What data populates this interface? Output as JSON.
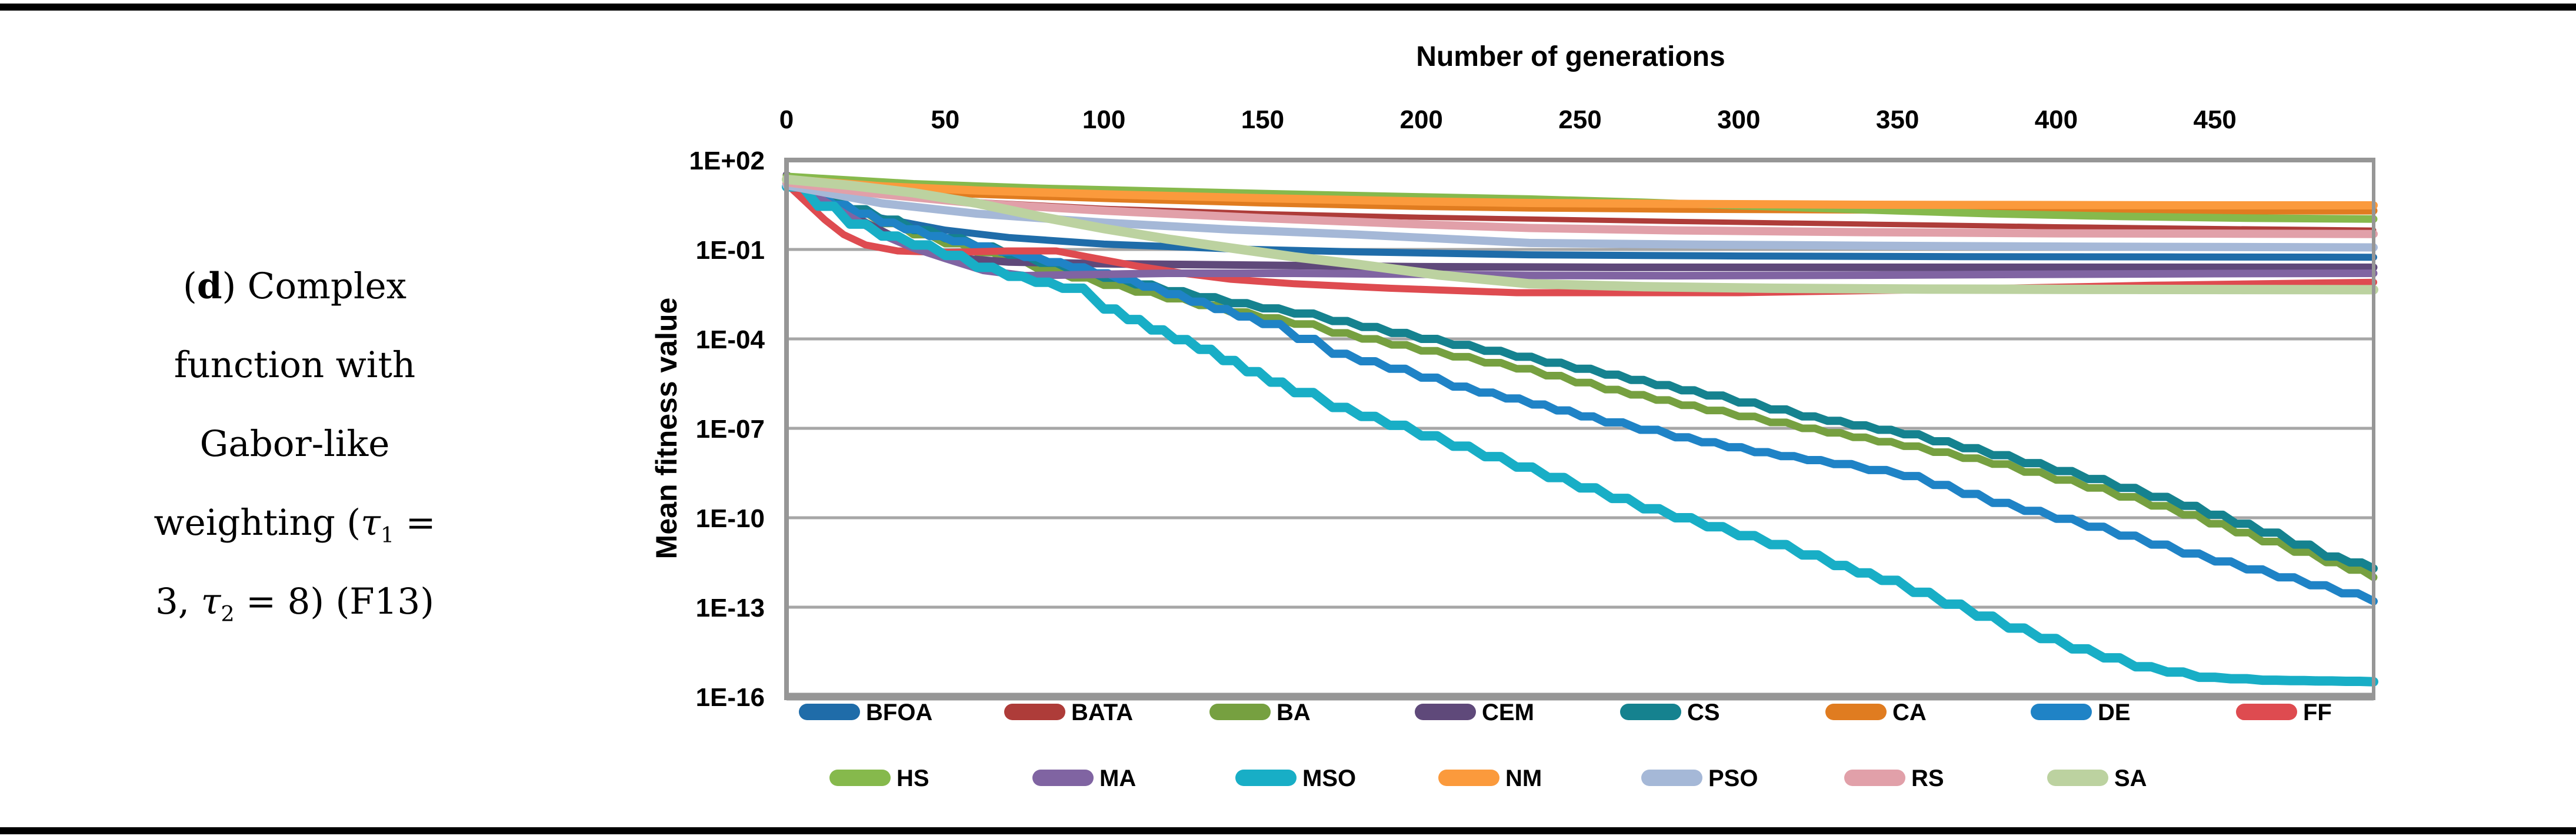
{
  "figure": {
    "caption_lines": [
      "(d) Complex",
      "function with",
      "Gabor-like",
      "weighting (τ₁ =",
      "3, τ₂ = 8) (F13)"
    ]
  },
  "chart_data": {
    "type": "line",
    "xlabel": "Number of generations",
    "ylabel": "Mean fitness value",
    "x_ticks": [
      0,
      50,
      100,
      150,
      200,
      250,
      300,
      350,
      400,
      450
    ],
    "xlim": [
      0,
      500
    ],
    "y_scale": "log10",
    "y_tick_labels": [
      "1E+02",
      "1E-01",
      "1E-04",
      "1E-07",
      "1E-10",
      "1E-13",
      "1E-16"
    ],
    "y_tick_log10": [
      2,
      -1,
      -4,
      -7,
      -10,
      -13,
      -16
    ],
    "ylim_log10": [
      -16,
      2
    ],
    "grid": true,
    "legend_position": "bottom",
    "legend_rows": [
      [
        "BFOA",
        "BATA",
        "BA",
        "CEM",
        "CS",
        "CA",
        "DE",
        "FF"
      ],
      [
        "HS",
        "MA",
        "MSO",
        "NM",
        "PSO",
        "RS",
        "SA"
      ]
    ],
    "series": [
      {
        "name": "BFOA",
        "color": "#1F6CA9",
        "width": 12,
        "step": false,
        "points_gen_log10": [
          [
            0,
            1.2
          ],
          [
            15,
            0.55
          ],
          [
            30,
            0.05
          ],
          [
            50,
            -0.35
          ],
          [
            70,
            -0.6
          ],
          [
            100,
            -0.82
          ],
          [
            140,
            -0.98
          ],
          [
            180,
            -1.08
          ],
          [
            234,
            -1.18
          ],
          [
            300,
            -1.22
          ],
          [
            370,
            -1.24
          ],
          [
            440,
            -1.25
          ],
          [
            500,
            -1.26
          ]
        ]
      },
      {
        "name": "BATA",
        "color": "#AE3C39",
        "width": 9,
        "step": false,
        "points_gen_log10": [
          [
            0,
            1.35
          ],
          [
            30,
            0.9
          ],
          [
            60,
            0.6
          ],
          [
            100,
            0.38
          ],
          [
            150,
            0.2
          ],
          [
            200,
            0.08
          ],
          [
            234,
            0.02
          ],
          [
            280,
            -0.06
          ],
          [
            340,
            -0.15
          ],
          [
            400,
            -0.24
          ],
          [
            450,
            -0.3
          ],
          [
            500,
            -0.35
          ]
        ]
      },
      {
        "name": "BA",
        "color": "#76A040",
        "width": 13,
        "step": true,
        "points_gen_log10": [
          [
            0,
            1.15
          ],
          [
            20,
            0.25
          ],
          [
            40,
            -0.5
          ],
          [
            60,
            -1.1
          ],
          [
            80,
            -1.7
          ],
          [
            100,
            -2.2
          ],
          [
            120,
            -2.65
          ],
          [
            140,
            -3.1
          ],
          [
            160,
            -3.5
          ],
          [
            172,
            -3.8
          ],
          [
            200,
            -4.4
          ],
          [
            230,
            -5.0
          ],
          [
            258,
            -5.7
          ],
          [
            290,
            -6.4
          ],
          [
            320,
            -7.0
          ],
          [
            352,
            -7.6
          ],
          [
            380,
            -8.2
          ],
          [
            410,
            -9.0
          ],
          [
            440,
            -9.9
          ],
          [
            465,
            -10.8
          ],
          [
            485,
            -11.5
          ],
          [
            500,
            -12.0
          ]
        ]
      },
      {
        "name": "CEM",
        "color": "#5F497A",
        "width": 13,
        "step": false,
        "points_gen_log10": [
          [
            0,
            1.5
          ],
          [
            8,
            1.0
          ],
          [
            16,
            0.45
          ],
          [
            25,
            -0.1
          ],
          [
            35,
            -0.65
          ],
          [
            45,
            -1.05
          ],
          [
            55,
            -1.3
          ],
          [
            70,
            -1.42
          ],
          [
            100,
            -1.48
          ],
          [
            150,
            -1.53
          ],
          [
            200,
            -1.58
          ],
          [
            260,
            -1.6
          ],
          [
            340,
            -1.6
          ],
          [
            420,
            -1.6
          ],
          [
            500,
            -1.6
          ]
        ]
      },
      {
        "name": "CS",
        "color": "#15828F",
        "width": 14,
        "step": true,
        "points_gen_log10": [
          [
            0,
            1.2
          ],
          [
            20,
            0.35
          ],
          [
            40,
            -0.35
          ],
          [
            60,
            -0.9
          ],
          [
            80,
            -1.45
          ],
          [
            100,
            -1.95
          ],
          [
            120,
            -2.4
          ],
          [
            140,
            -2.8
          ],
          [
            160,
            -3.15
          ],
          [
            172,
            -3.4
          ],
          [
            200,
            -4.0
          ],
          [
            230,
            -4.6
          ],
          [
            258,
            -5.2
          ],
          [
            290,
            -5.9
          ],
          [
            320,
            -6.6
          ],
          [
            352,
            -7.2
          ],
          [
            380,
            -7.9
          ],
          [
            410,
            -8.7
          ],
          [
            440,
            -9.6
          ],
          [
            465,
            -10.5
          ],
          [
            485,
            -11.3
          ],
          [
            500,
            -11.7
          ]
        ]
      },
      {
        "name": "CA",
        "color": "#E07C20",
        "width": 13,
        "step": false,
        "points_gen_log10": [
          [
            0,
            1.3
          ],
          [
            30,
            1.02
          ],
          [
            60,
            0.86
          ],
          [
            100,
            0.72
          ],
          [
            150,
            0.57
          ],
          [
            200,
            0.45
          ],
          [
            234,
            0.4
          ],
          [
            280,
            0.36
          ],
          [
            340,
            0.33
          ],
          [
            400,
            0.31
          ],
          [
            450,
            0.3
          ],
          [
            500,
            0.3
          ]
        ]
      },
      {
        "name": "DE",
        "color": "#1F83C6",
        "width": 14,
        "step": true,
        "points_gen_log10": [
          [
            0,
            1.15
          ],
          [
            15,
            0.5
          ],
          [
            30,
            -0.1
          ],
          [
            45,
            -0.55
          ],
          [
            60,
            -0.9
          ],
          [
            75,
            -1.25
          ],
          [
            90,
            -1.6
          ],
          [
            105,
            -2.0
          ],
          [
            120,
            -2.5
          ],
          [
            135,
            -3.0
          ],
          [
            150,
            -3.5
          ],
          [
            172,
            -4.5
          ],
          [
            190,
            -5.0
          ],
          [
            210,
            -5.6
          ],
          [
            235,
            -6.2
          ],
          [
            258,
            -6.8
          ],
          [
            280,
            -7.3
          ],
          [
            305,
            -7.8
          ],
          [
            330,
            -8.2
          ],
          [
            352,
            -8.6
          ],
          [
            380,
            -9.5
          ],
          [
            410,
            -10.3
          ],
          [
            440,
            -11.2
          ],
          [
            470,
            -12.0
          ],
          [
            500,
            -12.8
          ]
        ]
      },
      {
        "name": "FF",
        "color": "#DE4B50",
        "width": 12,
        "step": false,
        "points_gen_log10": [
          [
            0,
            1.2
          ],
          [
            6,
            0.6
          ],
          [
            12,
            0.0
          ],
          [
            18,
            -0.5
          ],
          [
            25,
            -0.85
          ],
          [
            35,
            -1.05
          ],
          [
            50,
            -1.1
          ],
          [
            70,
            -1.05
          ],
          [
            85,
            -1.05
          ],
          [
            95,
            -1.25
          ],
          [
            110,
            -1.55
          ],
          [
            125,
            -1.8
          ],
          [
            140,
            -2.0
          ],
          [
            160,
            -2.15
          ],
          [
            190,
            -2.3
          ],
          [
            230,
            -2.45
          ],
          [
            300,
            -2.45
          ],
          [
            360,
            -2.35
          ],
          [
            430,
            -2.2
          ],
          [
            500,
            -2.1
          ]
        ]
      },
      {
        "name": "HS",
        "color": "#86B94C",
        "width": 13,
        "step": false,
        "points_gen_log10": [
          [
            0,
            1.45
          ],
          [
            40,
            1.2
          ],
          [
            80,
            1.05
          ],
          [
            120,
            0.95
          ],
          [
            160,
            0.85
          ],
          [
            200,
            0.76
          ],
          [
            234,
            0.69
          ],
          [
            270,
            0.58
          ],
          [
            300,
            0.47
          ],
          [
            340,
            0.33
          ],
          [
            380,
            0.2
          ],
          [
            420,
            0.11
          ],
          [
            460,
            0.05
          ],
          [
            500,
            0.02
          ]
        ]
      },
      {
        "name": "MA",
        "color": "#8064A2",
        "width": 13,
        "step": false,
        "points_gen_log10": [
          [
            0,
            1.3
          ],
          [
            10,
            0.75
          ],
          [
            20,
            0.1
          ],
          [
            30,
            -0.5
          ],
          [
            40,
            -0.95
          ],
          [
            50,
            -1.3
          ],
          [
            62,
            -1.7
          ],
          [
            75,
            -1.88
          ],
          [
            90,
            -1.85
          ],
          [
            120,
            -1.8
          ],
          [
            160,
            -1.8
          ],
          [
            200,
            -1.83
          ],
          [
            234,
            -1.87
          ],
          [
            280,
            -1.88
          ],
          [
            340,
            -1.86
          ],
          [
            400,
            -1.83
          ],
          [
            450,
            -1.81
          ],
          [
            500,
            -1.8
          ]
        ]
      },
      {
        "name": "MSO",
        "color": "#18AEC6",
        "width": 16,
        "step": true,
        "points_gen_log10": [
          [
            0,
            1.1
          ],
          [
            10,
            0.45
          ],
          [
            20,
            -0.15
          ],
          [
            30,
            -0.55
          ],
          [
            40,
            -0.85
          ],
          [
            50,
            -1.2
          ],
          [
            60,
            -1.6
          ],
          [
            70,
            -1.9
          ],
          [
            87,
            -2.3
          ],
          [
            100,
            -3.0
          ],
          [
            115,
            -3.7
          ],
          [
            130,
            -4.35
          ],
          [
            145,
            -5.1
          ],
          [
            160,
            -5.8
          ],
          [
            172,
            -6.3
          ],
          [
            190,
            -6.9
          ],
          [
            210,
            -7.6
          ],
          [
            230,
            -8.3
          ],
          [
            250,
            -9.0
          ],
          [
            270,
            -9.7
          ],
          [
            290,
            -10.3
          ],
          [
            310,
            -10.9
          ],
          [
            330,
            -11.6
          ],
          [
            345,
            -12.1
          ],
          [
            365,
            -12.9
          ],
          [
            385,
            -13.7
          ],
          [
            405,
            -14.4
          ],
          [
            425,
            -15.0
          ],
          [
            445,
            -15.35
          ],
          [
            465,
            -15.45
          ],
          [
            500,
            -15.5
          ]
        ]
      },
      {
        "name": "NM",
        "color": "#FB9A3C",
        "width": 14,
        "step": false,
        "points_gen_log10": [
          [
            0,
            1.35
          ],
          [
            30,
            1.12
          ],
          [
            60,
            0.98
          ],
          [
            100,
            0.85
          ],
          [
            150,
            0.72
          ],
          [
            200,
            0.61
          ],
          [
            234,
            0.56
          ],
          [
            280,
            0.53
          ],
          [
            340,
            0.5
          ],
          [
            400,
            0.49
          ],
          [
            450,
            0.48
          ],
          [
            500,
            0.48
          ]
        ]
      },
      {
        "name": "PSO",
        "color": "#A5B8D7",
        "width": 14,
        "step": false,
        "points_gen_log10": [
          [
            0,
            1.15
          ],
          [
            30,
            0.55
          ],
          [
            60,
            0.2
          ],
          [
            100,
            -0.1
          ],
          [
            140,
            -0.33
          ],
          [
            180,
            -0.5
          ],
          [
            234,
            -0.78
          ],
          [
            290,
            -0.84
          ],
          [
            350,
            -0.88
          ],
          [
            420,
            -0.91
          ],
          [
            500,
            -0.93
          ]
        ]
      },
      {
        "name": "RS",
        "color": "#E1A0A9",
        "width": 14,
        "step": false,
        "points_gen_log10": [
          [
            0,
            1.25
          ],
          [
            30,
            0.85
          ],
          [
            60,
            0.55
          ],
          [
            100,
            0.3
          ],
          [
            150,
            0.05
          ],
          [
            200,
            -0.16
          ],
          [
            234,
            -0.28
          ],
          [
            280,
            -0.36
          ],
          [
            340,
            -0.42
          ],
          [
            400,
            -0.46
          ],
          [
            450,
            -0.47
          ],
          [
            500,
            -0.48
          ]
        ]
      },
      {
        "name": "SA",
        "color": "#BCD2A0",
        "width": 16,
        "step": false,
        "points_gen_log10": [
          [
            0,
            1.35
          ],
          [
            20,
            1.15
          ],
          [
            40,
            0.9
          ],
          [
            60,
            0.55
          ],
          [
            80,
            0.1
          ],
          [
            100,
            -0.3
          ],
          [
            120,
            -0.65
          ],
          [
            140,
            -0.95
          ],
          [
            160,
            -1.25
          ],
          [
            180,
            -1.5
          ],
          [
            205,
            -1.85
          ],
          [
            234,
            -2.15
          ],
          [
            270,
            -2.25
          ],
          [
            310,
            -2.3
          ],
          [
            360,
            -2.33
          ],
          [
            420,
            -2.34
          ],
          [
            500,
            -2.35
          ]
        ]
      }
    ]
  },
  "style": {
    "grid_color": "#A6A6A6",
    "axis_color": "#969696",
    "text_color": "#000000",
    "rule_color": "#000000",
    "background": "#FFFFFF"
  }
}
